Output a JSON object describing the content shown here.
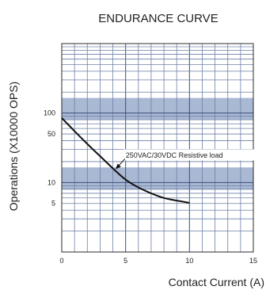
{
  "chart_data": {
    "type": "line",
    "title": "ENDURANCE CURVE",
    "xlabel": "Contact Current (A)",
    "ylabel": "Operations (X10000 OPS)",
    "xlim": [
      0,
      15
    ],
    "ylim_log": [
      1,
      1000
    ],
    "y_scale": "log",
    "x_ticks": [
      "0",
      "5",
      "10",
      "15"
    ],
    "y_ticks": [
      {
        "value": 100,
        "label": "100"
      },
      {
        "value": 50,
        "label": "50"
      },
      {
        "value": 10,
        "label": "10"
      },
      {
        "value": 5,
        "label": "5"
      }
    ],
    "grid": true,
    "series": [
      {
        "x": [
          0,
          1,
          2,
          3,
          4,
          5,
          6,
          7,
          8,
          9,
          10
        ],
        "y": [
          85,
          55,
          36,
          24,
          16,
          11,
          8.5,
          7,
          6,
          5.5,
          5.1
        ]
      }
    ],
    "annotations": [
      {
        "text": "250VAC/30VDC Resistive load",
        "x": 4.2,
        "y": 16
      }
    ],
    "colors": {
      "band": "#a9b8d3",
      "grid_major": "#3a4f7a",
      "grid_minor": "#6d80a6",
      "curve": "#111111"
    }
  }
}
